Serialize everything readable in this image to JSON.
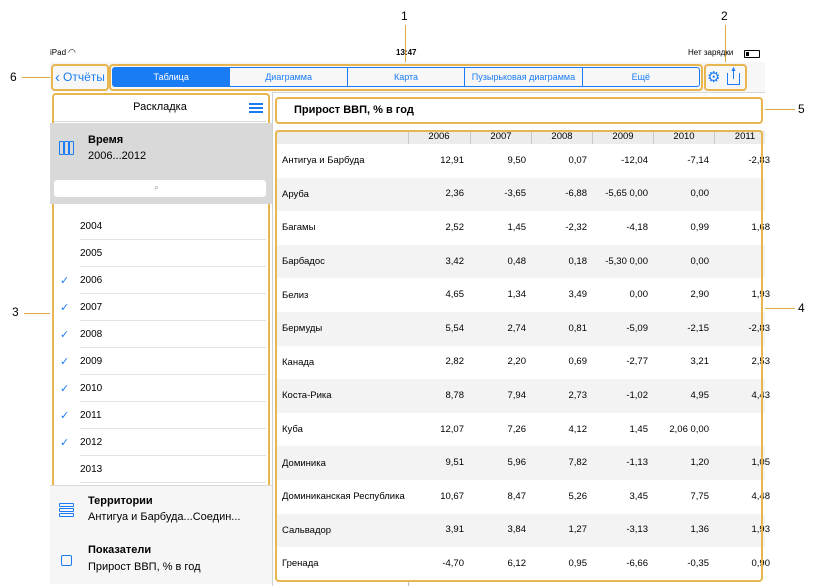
{
  "callouts": [
    "1",
    "2",
    "3",
    "4",
    "5",
    "6"
  ],
  "status_bar": {
    "device": "iPad",
    "time": "13:47",
    "battery": "Нет зарядки"
  },
  "nav": {
    "back_label": "Отчёты"
  },
  "tabs": [
    {
      "label": "Таблица",
      "active": true
    },
    {
      "label": "Диаграмма"
    },
    {
      "label": "Карта"
    },
    {
      "label": "Пузырьковая диаграмма"
    },
    {
      "label": "Ещё"
    }
  ],
  "sidebar": {
    "title": "Раскладка",
    "time_dim": {
      "name": "Время",
      "value": "2006...2012"
    },
    "search_placeholder": "",
    "years": [
      {
        "label": "2004",
        "checked": false
      },
      {
        "label": "2005",
        "checked": false
      },
      {
        "label": "2006",
        "checked": true
      },
      {
        "label": "2007",
        "checked": true
      },
      {
        "label": "2008",
        "checked": true
      },
      {
        "label": "2009",
        "checked": true
      },
      {
        "label": "2010",
        "checked": true
      },
      {
        "label": "2011",
        "checked": true
      },
      {
        "label": "2012",
        "checked": true
      },
      {
        "label": "2013",
        "checked": false
      }
    ],
    "territories": {
      "name": "Территории",
      "value": "Антигуа и Барбуда...Соедин..."
    },
    "indicators": {
      "name": "Показатели",
      "value": "Прирост ВВП, % в год"
    }
  },
  "report_title": "Прирост ВВП, % в год",
  "table": {
    "columns": [
      "2006",
      "2007",
      "2008",
      "2009",
      "2010",
      "2011"
    ],
    "rows": [
      {
        "label": "Антигуа и Барбуда",
        "cells": [
          "12,91",
          "9,50",
          "0,07",
          "-12,04",
          "-7,14",
          "-2,83"
        ]
      },
      {
        "label": "Аруба",
        "cells": [
          "2,36",
          "-3,65",
          "-6,88",
          "-5,65 0,00",
          "0,00",
          ""
        ]
      },
      {
        "label": "Багамы",
        "cells": [
          "2,52",
          "1,45",
          "-2,32",
          "-4,18",
          "0,99",
          "1,68"
        ]
      },
      {
        "label": "Барбадос",
        "cells": [
          "3,42",
          "0,48",
          "0,18",
          "-5,30 0,00",
          "0,00",
          ""
        ]
      },
      {
        "label": "Белиз",
        "cells": [
          "4,65",
          "1,34",
          "3,49",
          "0,00",
          "2,90",
          "1,93"
        ]
      },
      {
        "label": "Бермуды",
        "cells": [
          "5,54",
          "2,74",
          "0,81",
          "-5,09",
          "-2,15",
          "-2,83"
        ]
      },
      {
        "label": "Канада",
        "cells": [
          "2,82",
          "2,20",
          "0,69",
          "-2,77",
          "3,21",
          "2,53"
        ]
      },
      {
        "label": "Коста-Рика",
        "cells": [
          "8,78",
          "7,94",
          "2,73",
          "-1,02",
          "4,95",
          "4,43"
        ]
      },
      {
        "label": "Куба",
        "cells": [
          "12,07",
          "7,26",
          "4,12",
          "1,45",
          "2,06 0,00",
          ""
        ]
      },
      {
        "label": "Доминика",
        "cells": [
          "9,51",
          "5,96",
          "7,82",
          "-1,13",
          "1,20",
          "1,05"
        ]
      },
      {
        "label": "Доминиканская Республика",
        "cells": [
          "10,67",
          "8,47",
          "5,26",
          "3,45",
          "7,75",
          "4,48"
        ]
      },
      {
        "label": "Сальвадор",
        "cells": [
          "3,91",
          "3,84",
          "1,27",
          "-3,13",
          "1,36",
          "1,93"
        ]
      },
      {
        "label": "Гренада",
        "cells": [
          "-4,70",
          "6,12",
          "0,95",
          "-6,66",
          "-0,35",
          "0,90"
        ]
      }
    ]
  },
  "colors": {
    "accent": "#1a7cf5",
    "callout": "#e8b54e"
  }
}
